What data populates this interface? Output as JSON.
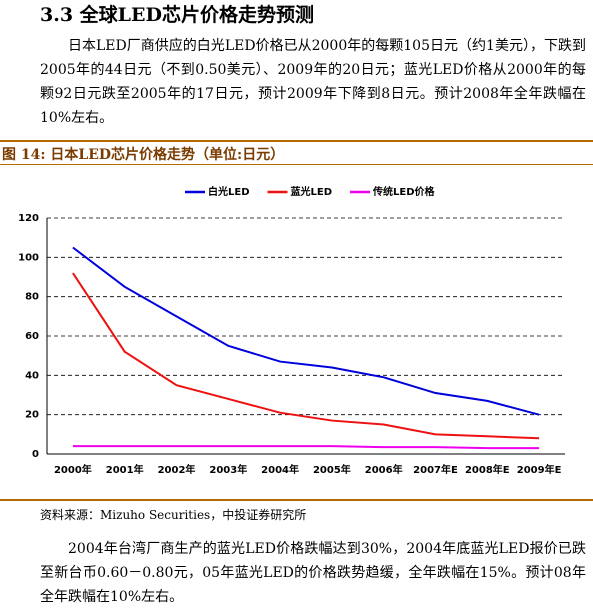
{
  "heading": "3.3 全球LED芯片价格走势预测",
  "paragraph1": "日本LED厂商供应的白光LED价格已从2000年的每颗105日元（约1美元），下跌到2005年的44日元（不到0.50美元）、2009年的20日元；蓝光LED价格从2000年的每颗92日元跌至2005年的17日元，预计2009年下降到8日元。预计2008年全年跌幅在10%左右。",
  "figure_caption": "图 14: 日本LED芯片价格走势（单位:日元）",
  "chart_data": {
    "type": "line",
    "categories": [
      "2000年",
      "2001年",
      "2002年",
      "2003年",
      "2004年",
      "2005年",
      "2006年",
      "2007年E",
      "2008年E",
      "2009年E"
    ],
    "series": [
      {
        "name": "白光LED",
        "color": "#0000dd",
        "values": [
          105,
          85,
          70,
          55,
          47,
          44,
          39,
          31,
          27,
          20
        ]
      },
      {
        "name": "蓝光LED",
        "color": "#ee1111",
        "values": [
          92,
          52,
          35,
          28,
          21,
          17,
          15,
          10,
          9,
          8
        ]
      },
      {
        "name": "传统LED价格",
        "color": "#ee00ee",
        "values": [
          4,
          4,
          4,
          4,
          4,
          4,
          3.5,
          3.5,
          3,
          3
        ]
      }
    ],
    "ylim": [
      0,
      120
    ],
    "yticks": [
      0,
      20,
      40,
      60,
      80,
      100,
      120
    ],
    "grid": true,
    "legend": "top"
  },
  "source": "资料来源：Mizuho Securities，中投证券研究所",
  "paragraph2": "2004年台湾厂商生产的蓝光LED价格跌幅达到30%，2004年底蓝光LED报价已跌至新台币0.60－0.80元，05年蓝光LED的价格跌势趋缓，全年跌幅在15%。预计08年全年跌幅在10%左右。"
}
